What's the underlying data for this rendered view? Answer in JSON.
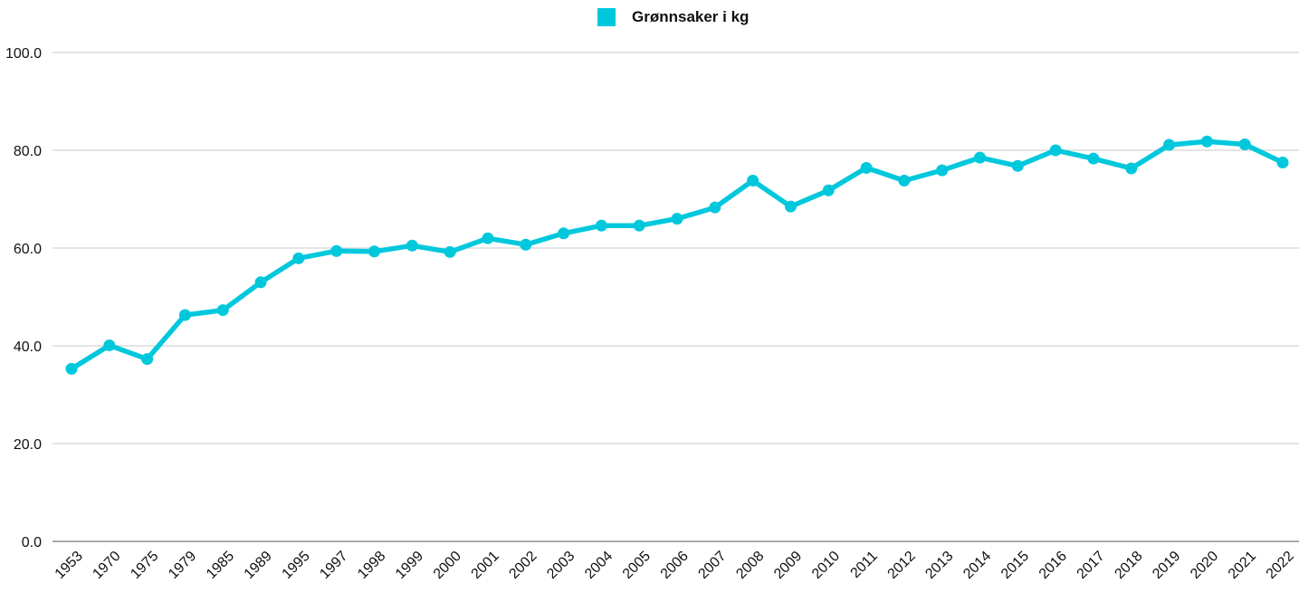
{
  "chart_data": {
    "type": "line",
    "title": "",
    "xlabel": "",
    "ylabel": "",
    "ylim": [
      0,
      100
    ],
    "yticks": [
      "0.0",
      "20.0",
      "40.0",
      "60.0",
      "80.0",
      "100.0"
    ],
    "grid": true,
    "legend_position": "top-center",
    "categories": [
      "1953",
      "1970",
      "1975",
      "1979",
      "1985",
      "1989",
      "1995",
      "1997",
      "1998",
      "1999",
      "2000",
      "2001",
      "2002",
      "2003",
      "2004",
      "2005",
      "2006",
      "2007",
      "2008",
      "2009",
      "2010",
      "2011",
      "2012",
      "2013",
      "2014",
      "2015",
      "2016",
      "2017",
      "2018",
      "2019",
      "2020",
      "2021",
      "2022"
    ],
    "series": [
      {
        "name": "Grønnsaker i kg",
        "color": "#00c8dc",
        "values": [
          35.3,
          40.1,
          37.3,
          46.3,
          47.3,
          53.0,
          57.9,
          59.4,
          59.3,
          60.5,
          59.2,
          62.0,
          60.7,
          63.0,
          64.6,
          64.6,
          66.0,
          68.3,
          73.8,
          68.5,
          71.8,
          76.4,
          73.8,
          75.9,
          78.5,
          76.8,
          80.0,
          78.3,
          76.3,
          81.1,
          81.8,
          81.2,
          77.5
        ]
      }
    ]
  },
  "colors": {
    "accent": "#00c8dc",
    "grid": "#c8c8c8",
    "baseline": "#777777"
  }
}
